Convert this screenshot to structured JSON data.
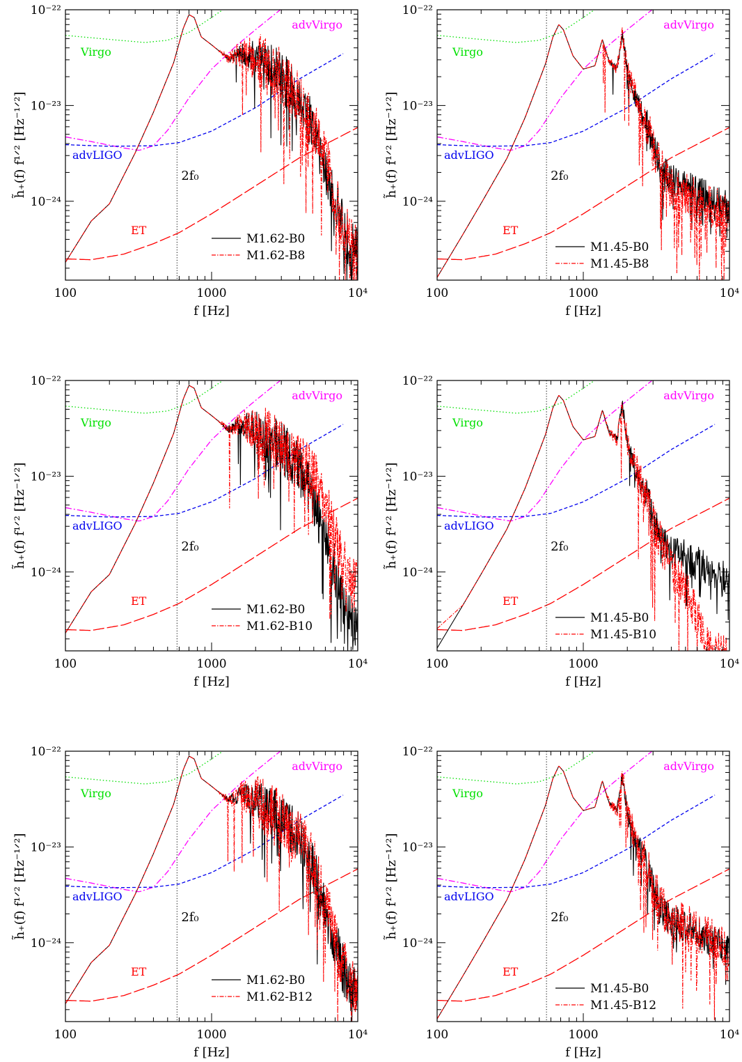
{
  "colors": {
    "virgo": "#00e000",
    "advVirgo": "#ff00ff",
    "advLIGO": "#0000ee",
    "ET": "#ff0000",
    "B0": "#000000",
    "Bx": "#ff0000"
  },
  "common": {
    "xlabel": "f [Hz]",
    "ylabel": "h̃₊(f) f¹ᐟ² [Hz⁻¹ᐟ²]",
    "xtick_labels": [
      "100",
      "1000",
      "10⁴"
    ],
    "ytick_labels": [
      "10⁻²²",
      "10⁻²³",
      "10⁻²⁴"
    ],
    "f0_label": "2f₀",
    "detectors": {
      "virgo": "Virgo",
      "advVirgo": "advVirgo",
      "advLIGO": "advLIGO",
      "ET": "ET"
    }
  },
  "chart_data": [
    {
      "type": "line",
      "panel": "top-left",
      "xscale": "log",
      "yscale": "log",
      "xlim": [
        100,
        10000
      ],
      "ylim": [
        1.5e-25,
        1e-22
      ],
      "f0_line": 580,
      "legend": [
        "M1.62-B0",
        "M1.62-B8"
      ],
      "model": "M1.62",
      "variant": "B8"
    },
    {
      "type": "line",
      "panel": "top-right",
      "xscale": "log",
      "yscale": "log",
      "xlim": [
        100,
        10000
      ],
      "ylim": [
        1.5e-25,
        1e-22
      ],
      "f0_line": 560,
      "legend": [
        "M1.45-B0",
        "M1.45-B8"
      ],
      "model": "M1.45",
      "variant": "B8"
    },
    {
      "type": "line",
      "panel": "middle-left",
      "xscale": "log",
      "yscale": "log",
      "xlim": [
        100,
        10000
      ],
      "ylim": [
        1.5e-25,
        1e-22
      ],
      "f0_line": 580,
      "legend": [
        "M1.62-B0",
        "M1.62-B10"
      ],
      "model": "M1.62",
      "variant": "B10"
    },
    {
      "type": "line",
      "panel": "middle-right",
      "xscale": "log",
      "yscale": "log",
      "xlim": [
        100,
        10000
      ],
      "ylim": [
        1.5e-25,
        1e-22
      ],
      "f0_line": 560,
      "legend": [
        "M1.45-B0",
        "M1.45-B10"
      ],
      "model": "M1.45",
      "variant": "B10"
    },
    {
      "type": "line",
      "panel": "bottom-left",
      "xscale": "log",
      "yscale": "log",
      "xlim": [
        100,
        10000
      ],
      "ylim": [
        1.5e-25,
        1e-22
      ],
      "f0_line": 580,
      "legend": [
        "M1.62-B0",
        "M1.62-B12"
      ],
      "model": "M1.62",
      "variant": "B12"
    },
    {
      "type": "line",
      "panel": "bottom-right",
      "xscale": "log",
      "yscale": "log",
      "xlim": [
        100,
        10000
      ],
      "ylim": [
        1.5e-25,
        1e-22
      ],
      "f0_line": 560,
      "legend": [
        "M1.45-B0",
        "M1.45-B12"
      ],
      "model": "M1.45",
      "variant": "B12"
    }
  ]
}
